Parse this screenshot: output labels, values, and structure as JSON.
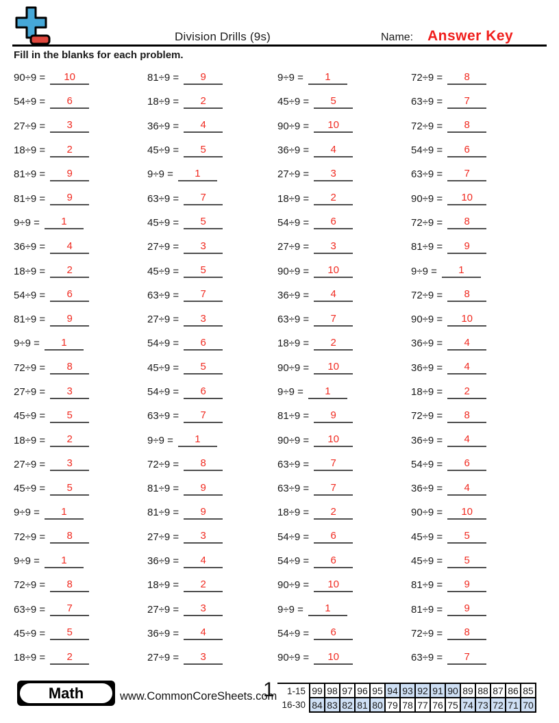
{
  "header": {
    "title": "Division Drills (9s)",
    "name_label": "Name:",
    "answer_key_label": "Answer Key",
    "instructions": "Fill in the blanks for each problem.",
    "logo": {
      "plus_icon_color": "#46a8d8",
      "minus_icon_color": "#e0473d"
    }
  },
  "colors": {
    "answer_red": "#f02a20",
    "answer_key_red": "#f01e1c",
    "table_shade_blue": "#cfe0f5",
    "blank_line": "#4d4d4d"
  },
  "problems": {
    "columns": [
      {
        "items": [
          {
            "q": "90÷9 =",
            "a": "10"
          },
          {
            "q": "54÷9 =",
            "a": "6"
          },
          {
            "q": "27÷9 =",
            "a": "3"
          },
          {
            "q": "18÷9 =",
            "a": "2"
          },
          {
            "q": "81÷9 =",
            "a": "9"
          },
          {
            "q": "81÷9 =",
            "a": "9"
          },
          {
            "q": "9÷9 =",
            "a": "1"
          },
          {
            "q": "36÷9 =",
            "a": "4"
          },
          {
            "q": "18÷9 =",
            "a": "2"
          },
          {
            "q": "54÷9 =",
            "a": "6"
          },
          {
            "q": "81÷9 =",
            "a": "9"
          },
          {
            "q": "9÷9 =",
            "a": "1"
          },
          {
            "q": "72÷9 =",
            "a": "8"
          },
          {
            "q": "27÷9 =",
            "a": "3"
          },
          {
            "q": "45÷9 =",
            "a": "5"
          },
          {
            "q": "18÷9 =",
            "a": "2"
          },
          {
            "q": "27÷9 =",
            "a": "3"
          },
          {
            "q": "45÷9 =",
            "a": "5"
          },
          {
            "q": "9÷9 =",
            "a": "1"
          },
          {
            "q": "72÷9 =",
            "a": "8"
          },
          {
            "q": "9÷9 =",
            "a": "1"
          },
          {
            "q": "72÷9 =",
            "a": "8"
          },
          {
            "q": "63÷9 =",
            "a": "7"
          },
          {
            "q": "45÷9 =",
            "a": "5"
          },
          {
            "q": "18÷9 =",
            "a": "2"
          }
        ]
      },
      {
        "items": [
          {
            "q": "81÷9 =",
            "a": "9"
          },
          {
            "q": "18÷9 =",
            "a": "2"
          },
          {
            "q": "36÷9 =",
            "a": "4"
          },
          {
            "q": "45÷9 =",
            "a": "5"
          },
          {
            "q": "9÷9 =",
            "a": "1"
          },
          {
            "q": "63÷9 =",
            "a": "7"
          },
          {
            "q": "45÷9 =",
            "a": "5"
          },
          {
            "q": "27÷9 =",
            "a": "3"
          },
          {
            "q": "45÷9 =",
            "a": "5"
          },
          {
            "q": "63÷9 =",
            "a": "7"
          },
          {
            "q": "27÷9 =",
            "a": "3"
          },
          {
            "q": "54÷9 =",
            "a": "6"
          },
          {
            "q": "45÷9 =",
            "a": "5"
          },
          {
            "q": "54÷9 =",
            "a": "6"
          },
          {
            "q": "63÷9 =",
            "a": "7"
          },
          {
            "q": "9÷9 =",
            "a": "1"
          },
          {
            "q": "72÷9 =",
            "a": "8"
          },
          {
            "q": "81÷9 =",
            "a": "9"
          },
          {
            "q": "81÷9 =",
            "a": "9"
          },
          {
            "q": "27÷9 =",
            "a": "3"
          },
          {
            "q": "36÷9 =",
            "a": "4"
          },
          {
            "q": "18÷9 =",
            "a": "2"
          },
          {
            "q": "27÷9 =",
            "a": "3"
          },
          {
            "q": "36÷9 =",
            "a": "4"
          },
          {
            "q": "27÷9 =",
            "a": "3"
          }
        ]
      },
      {
        "items": [
          {
            "q": "9÷9 =",
            "a": "1"
          },
          {
            "q": "45÷9 =",
            "a": "5"
          },
          {
            "q": "90÷9 =",
            "a": "10"
          },
          {
            "q": "36÷9 =",
            "a": "4"
          },
          {
            "q": "27÷9 =",
            "a": "3"
          },
          {
            "q": "18÷9 =",
            "a": "2"
          },
          {
            "q": "54÷9 =",
            "a": "6"
          },
          {
            "q": "27÷9 =",
            "a": "3"
          },
          {
            "q": "90÷9 =",
            "a": "10"
          },
          {
            "q": "36÷9 =",
            "a": "4"
          },
          {
            "q": "63÷9 =",
            "a": "7"
          },
          {
            "q": "18÷9 =",
            "a": "2"
          },
          {
            "q": "90÷9 =",
            "a": "10"
          },
          {
            "q": "9÷9 =",
            "a": "1"
          },
          {
            "q": "81÷9 =",
            "a": "9"
          },
          {
            "q": "90÷9 =",
            "a": "10"
          },
          {
            "q": "63÷9 =",
            "a": "7"
          },
          {
            "q": "63÷9 =",
            "a": "7"
          },
          {
            "q": "18÷9 =",
            "a": "2"
          },
          {
            "q": "54÷9 =",
            "a": "6"
          },
          {
            "q": "54÷9 =",
            "a": "6"
          },
          {
            "q": "90÷9 =",
            "a": "10"
          },
          {
            "q": "9÷9 =",
            "a": "1"
          },
          {
            "q": "54÷9 =",
            "a": "6"
          },
          {
            "q": "90÷9 =",
            "a": "10"
          }
        ]
      },
      {
        "items": [
          {
            "q": "72÷9 =",
            "a": "8"
          },
          {
            "q": "63÷9 =",
            "a": "7"
          },
          {
            "q": "72÷9 =",
            "a": "8"
          },
          {
            "q": "54÷9 =",
            "a": "6"
          },
          {
            "q": "63÷9 =",
            "a": "7"
          },
          {
            "q": "90÷9 =",
            "a": "10"
          },
          {
            "q": "72÷9 =",
            "a": "8"
          },
          {
            "q": "81÷9 =",
            "a": "9"
          },
          {
            "q": "9÷9 =",
            "a": "1"
          },
          {
            "q": "72÷9 =",
            "a": "8"
          },
          {
            "q": "90÷9 =",
            "a": "10"
          },
          {
            "q": "36÷9 =",
            "a": "4"
          },
          {
            "q": "36÷9 =",
            "a": "4"
          },
          {
            "q": "18÷9 =",
            "a": "2"
          },
          {
            "q": "72÷9 =",
            "a": "8"
          },
          {
            "q": "36÷9 =",
            "a": "4"
          },
          {
            "q": "54÷9 =",
            "a": "6"
          },
          {
            "q": "36÷9 =",
            "a": "4"
          },
          {
            "q": "90÷9 =",
            "a": "10"
          },
          {
            "q": "45÷9 =",
            "a": "5"
          },
          {
            "q": "45÷9 =",
            "a": "5"
          },
          {
            "q": "81÷9 =",
            "a": "9"
          },
          {
            "q": "81÷9 =",
            "a": "9"
          },
          {
            "q": "72÷9 =",
            "a": "8"
          },
          {
            "q": "63÷9 =",
            "a": "7"
          }
        ]
      }
    ]
  },
  "footer": {
    "subject_badge": "Math",
    "website": "www.CommonCoreSheets.com",
    "page_number": "1",
    "score_table": {
      "rows": [
        {
          "label": "1-15",
          "cells": [
            {
              "v": "99",
              "shaded": false
            },
            {
              "v": "98",
              "shaded": false
            },
            {
              "v": "97",
              "shaded": false
            },
            {
              "v": "96",
              "shaded": false
            },
            {
              "v": "95",
              "shaded": false
            },
            {
              "v": "94",
              "shaded": true
            },
            {
              "v": "93",
              "shaded": true
            },
            {
              "v": "92",
              "shaded": true
            },
            {
              "v": "91",
              "shaded": true
            },
            {
              "v": "90",
              "shaded": true
            },
            {
              "v": "89",
              "shaded": false
            },
            {
              "v": "88",
              "shaded": false
            },
            {
              "v": "87",
              "shaded": false
            },
            {
              "v": "86",
              "shaded": false
            },
            {
              "v": "85",
              "shaded": false
            }
          ]
        },
        {
          "label": "16-30",
          "cells": [
            {
              "v": "84",
              "shaded": true
            },
            {
              "v": "83",
              "shaded": true
            },
            {
              "v": "82",
              "shaded": true
            },
            {
              "v": "81",
              "shaded": true
            },
            {
              "v": "80",
              "shaded": true
            },
            {
              "v": "79",
              "shaded": false
            },
            {
              "v": "78",
              "shaded": false
            },
            {
              "v": "77",
              "shaded": false
            },
            {
              "v": "76",
              "shaded": false
            },
            {
              "v": "75",
              "shaded": false
            },
            {
              "v": "74",
              "shaded": true
            },
            {
              "v": "73",
              "shaded": true
            },
            {
              "v": "72",
              "shaded": true
            },
            {
              "v": "71",
              "shaded": true
            },
            {
              "v": "70",
              "shaded": true
            }
          ]
        }
      ]
    }
  }
}
